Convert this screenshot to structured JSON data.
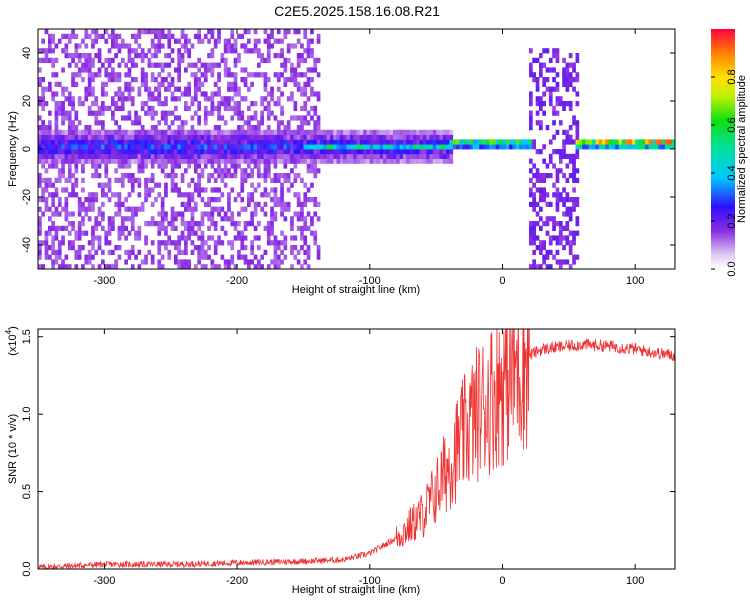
{
  "page_title": "C2E5.2025.158.16.08.R21",
  "chart_data": [
    {
      "type": "heatmap",
      "title": "C2E5.2025.158.16.08.R21",
      "xlabel": "Height of straight line (km)",
      "ylabel": "Frequency (Hz)",
      "xlim": [
        -350,
        130
      ],
      "ylim": [
        -50,
        50
      ],
      "x_ticks": [
        -300,
        -200,
        -100,
        0,
        100
      ],
      "x_tick_labels": [
        "-300",
        "-200",
        "-100",
        "0",
        "100"
      ],
      "y_ticks": [
        -40,
        -20,
        0,
        20,
        40
      ],
      "y_tick_labels": [
        "-40",
        "-20",
        "0",
        "20",
        "40"
      ],
      "grid": false,
      "colorbar": {
        "label": "Normalized spectral amplitude",
        "range": [
          0,
          1
        ],
        "ticks": [
          0.0,
          0.2,
          0.4,
          0.6,
          0.8
        ],
        "tick_labels": [
          "0.0",
          "0.2",
          "0.4",
          "0.6",
          "0.8"
        ],
        "colormap": "rainbow"
      },
      "features": [
        {
          "x_range": [
            -350,
            -140
          ],
          "y_range": [
            -50,
            50
          ],
          "amplitude": 0.12,
          "description_type": "broadband noise"
        },
        {
          "x_range": [
            -350,
            -40
          ],
          "center_freq": 0,
          "width_hz": 10,
          "amplitude": 0.3
        },
        {
          "x_range": [
            -150,
            -40
          ],
          "center_freq": 0,
          "width_hz": 3,
          "amplitude": 0.5
        },
        {
          "x_range": [
            -40,
            20
          ],
          "center_freq": 1.5,
          "width_hz": 3,
          "amplitude": 0.7
        },
        {
          "x_range": [
            55,
            130
          ],
          "center_freq": 1.5,
          "width_hz": 3,
          "amplitude": 0.95
        },
        {
          "x_range": [
            20,
            55
          ],
          "y_range": [
            -50,
            40
          ],
          "amplitude": 0.15,
          "description_type": "broadband burst"
        }
      ]
    },
    {
      "type": "line",
      "title": "",
      "xlabel": "Height of straight line (km)",
      "ylabel": "SNR (10 * v/v)",
      "y_multiplier_label": "(x10",
      "y_multiplier_exponent": "4",
      "y_multiplier_close": ")",
      "xlim": [
        -350,
        130
      ],
      "ylim": [
        0,
        1.55
      ],
      "x_ticks": [
        -300,
        -200,
        -100,
        0,
        100
      ],
      "x_tick_labels": [
        "-300",
        "-200",
        "-100",
        "0",
        "100"
      ],
      "y_ticks": [
        0,
        0.5,
        1.0,
        1.5
      ],
      "y_tick_labels": [
        "0.0",
        "0.5",
        "1.0",
        "1.5"
      ],
      "grid": false,
      "series": [
        {
          "color": "#ee3333",
          "x": [
            -350,
            -300,
            -250,
            -200,
            -150,
            -120,
            -100,
            -80,
            -60,
            -50,
            -40,
            -30,
            -20,
            -10,
            0,
            10,
            20,
            30,
            40,
            60,
            80,
            100,
            120,
            130
          ],
          "y": [
            0.01,
            0.03,
            0.03,
            0.04,
            0.05,
            0.06,
            0.1,
            0.2,
            0.35,
            0.5,
            0.68,
            0.85,
            1.0,
            1.1,
            1.2,
            1.3,
            1.38,
            1.42,
            1.43,
            1.45,
            1.44,
            1.42,
            1.39,
            1.38
          ]
        }
      ]
    }
  ]
}
